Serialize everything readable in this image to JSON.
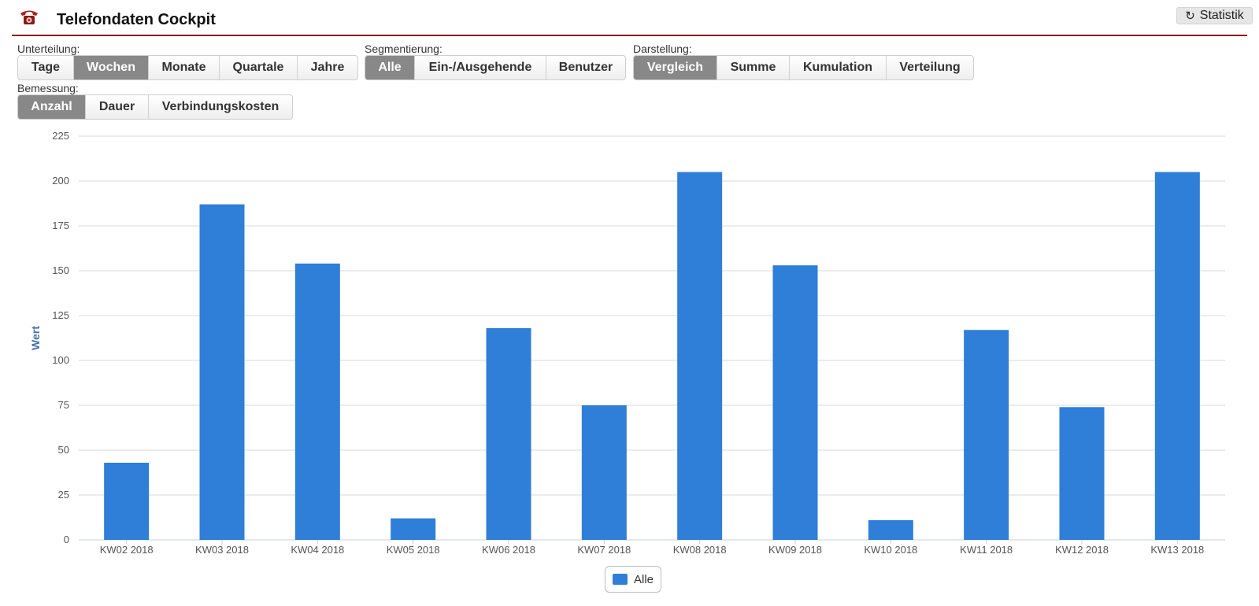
{
  "header": {
    "title": "Telefondaten Cockpit",
    "stat_button": "Statistik",
    "icons": {
      "app": "phone-icon",
      "refresh": "refresh-icon"
    },
    "accent_color": "#8b1e1e"
  },
  "controls": {
    "unterteilung": {
      "label": "Unterteilung:",
      "options": [
        "Tage",
        "Wochen",
        "Monate",
        "Quartale",
        "Jahre"
      ],
      "selected": "Wochen"
    },
    "segmentierung": {
      "label": "Segmentierung:",
      "options": [
        "Alle",
        "Ein-/Ausgehende",
        "Benutzer"
      ],
      "selected": "Alle"
    },
    "darstellung": {
      "label": "Darstellung:",
      "options": [
        "Vergleich",
        "Summe",
        "Kumulation",
        "Verteilung"
      ],
      "selected": "Vergleich"
    },
    "bemessung": {
      "label": "Bemessung:",
      "options": [
        "Anzahl",
        "Dauer",
        "Verbindungskosten"
      ],
      "selected": "Anzahl"
    }
  },
  "chart_data": {
    "type": "bar",
    "categories": [
      "KW02 2018",
      "KW03 2018",
      "KW04 2018",
      "KW05 2018",
      "KW06 2018",
      "KW07 2018",
      "KW08 2018",
      "KW09 2018",
      "KW10 2018",
      "KW11 2018",
      "KW12 2018",
      "KW13 2018"
    ],
    "series": [
      {
        "name": "Alle",
        "values": [
          43,
          187,
          154,
          12,
          118,
          75,
          205,
          153,
          11,
          117,
          74,
          205
        ],
        "color": "#2f7ed8"
      }
    ],
    "title": "",
    "xlabel": "",
    "ylabel": "Wert",
    "ylim": [
      0,
      225
    ],
    "yticks": [
      0,
      25,
      50,
      75,
      100,
      125,
      150,
      175,
      200,
      225
    ],
    "grid": true,
    "legend_position": "bottom-center"
  },
  "legend": {
    "label": "Alle"
  }
}
